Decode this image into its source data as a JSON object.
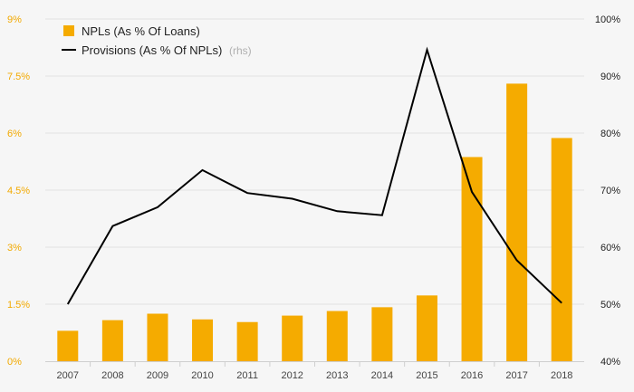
{
  "chart_data": {
    "type": "bar+line",
    "categories": [
      "2007",
      "2008",
      "2009",
      "2010",
      "2011",
      "2012",
      "2013",
      "2014",
      "2015",
      "2016",
      "2017",
      "2018"
    ],
    "series": [
      {
        "name": "NPLs (As % Of Loans)",
        "type": "bar",
        "axis": "left",
        "color": "#f5ab00",
        "values": [
          0.8,
          1.08,
          1.25,
          1.1,
          1.03,
          1.2,
          1.32,
          1.42,
          1.73,
          5.37,
          7.3,
          5.87
        ]
      },
      {
        "name": "Provisions (As % Of NPLs)",
        "name_note": "(rhs)",
        "type": "line",
        "axis": "right",
        "color": "#000000",
        "values": [
          50.0,
          63.7,
          67.0,
          73.5,
          69.5,
          68.5,
          66.3,
          65.6,
          94.6,
          69.7,
          57.7,
          50.2
        ]
      }
    ],
    "y_left": {
      "ylim": [
        0,
        9
      ],
      "ticks": [
        0,
        1.5,
        3,
        4.5,
        6,
        7.5,
        9
      ],
      "tick_labels": [
        "0%",
        "1.5%",
        "3%",
        "4.5%",
        "6%",
        "7.5%",
        "9%"
      ],
      "color": "#f2a900"
    },
    "y_right": {
      "ylim": [
        40,
        100
      ],
      "ticks": [
        40,
        50,
        60,
        70,
        80,
        90,
        100
      ],
      "tick_labels": [
        "40%",
        "50%",
        "60%",
        "70%",
        "80%",
        "90%",
        "100%"
      ],
      "color": "#222222"
    },
    "grid": true,
    "legend": "top-left",
    "title": "",
    "xlabel": "",
    "ylabel": ""
  }
}
